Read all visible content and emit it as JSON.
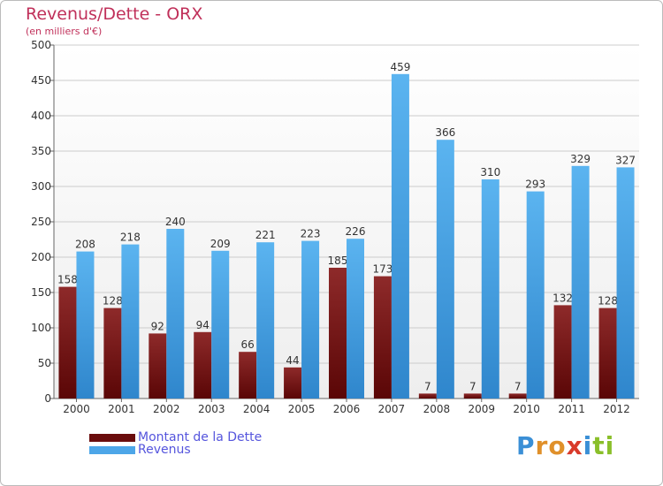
{
  "header": {
    "title": "Revenus/Dette - ORX",
    "subtitle": "(en milliers d'€)"
  },
  "colors": {
    "dette": "#7a1a1a",
    "revenus": "#4da6e8",
    "title": "#c0305a",
    "legend_text": "#5555dd"
  },
  "chart_data": {
    "type": "bar",
    "title": "Revenus/Dette - ORX",
    "ylabel": "(en milliers d'€)",
    "xlabel": "",
    "categories": [
      "2000",
      "2001",
      "2002",
      "2003",
      "2004",
      "2005",
      "2006",
      "2007",
      "2008",
      "2009",
      "2010",
      "2011",
      "2012"
    ],
    "series": [
      {
        "name": "Montant de la Dette",
        "values": [
          158,
          128,
          92,
          94,
          66,
          44,
          185,
          173,
          7,
          7,
          7,
          132,
          128
        ]
      },
      {
        "name": "Revenus",
        "values": [
          208,
          218,
          240,
          209,
          221,
          223,
          226,
          459,
          366,
          310,
          293,
          329,
          327
        ]
      }
    ],
    "ylim": [
      0,
      500
    ],
    "yticks": [
      0,
      50,
      100,
      150,
      200,
      250,
      300,
      350,
      400,
      450,
      500
    ],
    "grid": true,
    "legend": "bottom-left"
  },
  "legend": {
    "items": [
      {
        "label": "Montant de la Dette",
        "color": "#6a0d0d"
      },
      {
        "label": "Revenus",
        "color": "#4da6e8"
      }
    ]
  },
  "logo": {
    "text": "Proxiti",
    "letters": [
      {
        "ch": "P",
        "color": "#3a8fd6"
      },
      {
        "ch": "r",
        "color": "#e0902a"
      },
      {
        "ch": "o",
        "color": "#e0902a"
      },
      {
        "ch": "x",
        "color": "#d93a2a"
      },
      {
        "ch": "i",
        "color": "#3a8fd6"
      },
      {
        "ch": "t",
        "color": "#8abf2a"
      },
      {
        "ch": "i",
        "color": "#8abf2a"
      }
    ]
  }
}
